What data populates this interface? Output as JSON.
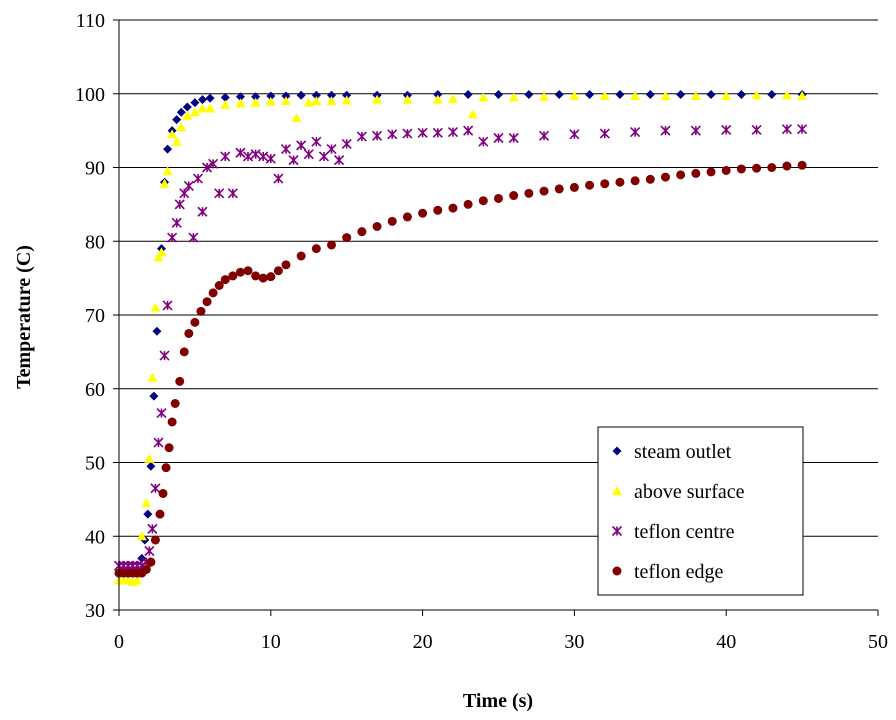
{
  "chart_data": {
    "type": "scatter",
    "title": "",
    "xlabel": "Time (s)",
    "ylabel": "Temperature (C)",
    "xlim": [
      0,
      50
    ],
    "ylim": [
      30,
      110
    ],
    "x_ticks": [
      0,
      10,
      20,
      30,
      40,
      50
    ],
    "y_ticks": [
      30,
      40,
      50,
      60,
      70,
      80,
      90,
      100,
      110
    ],
    "grid": "horizontal major gridlines",
    "legend_position": "bottom-right",
    "series": [
      {
        "name": "steam outlet",
        "marker": "diamond",
        "color": "#000080",
        "points": [
          [
            0,
            35
          ],
          [
            0.3,
            35
          ],
          [
            0.6,
            35
          ],
          [
            0.9,
            35
          ],
          [
            1.2,
            35
          ],
          [
            1.5,
            37
          ],
          [
            1.7,
            39.5
          ],
          [
            1.9,
            43
          ],
          [
            2.1,
            49.5
          ],
          [
            2.3,
            59
          ],
          [
            2.5,
            67.8
          ],
          [
            2.8,
            79
          ],
          [
            3.0,
            88
          ],
          [
            3.2,
            92.5
          ],
          [
            3.5,
            95
          ],
          [
            3.8,
            96.5
          ],
          [
            4.1,
            97.5
          ],
          [
            4.5,
            98.2
          ],
          [
            5.0,
            98.8
          ],
          [
            5.5,
            99.2
          ],
          [
            6,
            99.4
          ],
          [
            7,
            99.5
          ],
          [
            8,
            99.6
          ],
          [
            9,
            99.6
          ],
          [
            10,
            99.7
          ],
          [
            11,
            99.7
          ],
          [
            12,
            99.8
          ],
          [
            13,
            99.8
          ],
          [
            14,
            99.8
          ],
          [
            15,
            99.8
          ],
          [
            17,
            99.8
          ],
          [
            19,
            99.8
          ],
          [
            21,
            99.9
          ],
          [
            23,
            99.9
          ],
          [
            25,
            99.9
          ],
          [
            27,
            99.9
          ],
          [
            29,
            99.9
          ],
          [
            31,
            99.9
          ],
          [
            33,
            99.9
          ],
          [
            35,
            99.9
          ],
          [
            37,
            99.9
          ],
          [
            39,
            99.9
          ],
          [
            41,
            99.9
          ],
          [
            43,
            99.9
          ],
          [
            45,
            99.9
          ]
        ]
      },
      {
        "name": "above surface",
        "marker": "triangle",
        "color": "#ffff00",
        "points": [
          [
            0,
            34
          ],
          [
            0.3,
            34
          ],
          [
            0.6,
            34
          ],
          [
            0.9,
            33.8
          ],
          [
            1.2,
            34
          ],
          [
            1.5,
            40
          ],
          [
            1.8,
            44.5
          ],
          [
            2.0,
            50.5
          ],
          [
            2.2,
            61.5
          ],
          [
            2.4,
            71
          ],
          [
            2.6,
            77.8
          ],
          [
            2.8,
            78.5
          ],
          [
            3.0,
            87.8
          ],
          [
            3.2,
            89.5
          ],
          [
            3.5,
            94.5
          ],
          [
            3.8,
            93.5
          ],
          [
            4.1,
            95.5
          ],
          [
            4.5,
            97
          ],
          [
            5,
            97.5
          ],
          [
            5.5,
            98
          ],
          [
            6,
            98
          ],
          [
            7,
            98.5
          ],
          [
            8,
            98.7
          ],
          [
            9,
            98.8
          ],
          [
            10,
            98.9
          ],
          [
            11,
            99
          ],
          [
            11.7,
            96.7
          ],
          [
            12.5,
            98.8
          ],
          [
            13,
            99
          ],
          [
            14,
            99
          ],
          [
            15,
            99.1
          ],
          [
            17,
            99.2
          ],
          [
            19,
            99.2
          ],
          [
            21,
            99.2
          ],
          [
            22,
            99.3
          ],
          [
            23.3,
            97.2
          ],
          [
            24,
            99.5
          ],
          [
            26,
            99.5
          ],
          [
            28,
            99.6
          ],
          [
            30,
            99.7
          ],
          [
            32,
            99.7
          ],
          [
            34,
            99.7
          ],
          [
            36,
            99.7
          ],
          [
            38,
            99.7
          ],
          [
            40,
            99.7
          ],
          [
            42,
            99.8
          ],
          [
            44,
            99.8
          ],
          [
            45,
            99.7
          ]
        ]
      },
      {
        "name": "teflon centre",
        "marker": "asterisk",
        "color": "#800080",
        "points": [
          [
            0,
            36
          ],
          [
            0.3,
            36
          ],
          [
            0.6,
            36
          ],
          [
            0.9,
            36
          ],
          [
            1.2,
            36
          ],
          [
            1.5,
            36
          ],
          [
            1.8,
            36.5
          ],
          [
            2.0,
            38
          ],
          [
            2.2,
            41
          ],
          [
            2.4,
            46.5
          ],
          [
            2.6,
            52.7
          ],
          [
            2.8,
            56.7
          ],
          [
            3.0,
            64.5
          ],
          [
            3.2,
            71.3
          ],
          [
            3.5,
            80.5
          ],
          [
            3.8,
            82.5
          ],
          [
            4.0,
            85
          ],
          [
            4.3,
            86.5
          ],
          [
            4.6,
            87.5
          ],
          [
            4.9,
            80.5
          ],
          [
            5.2,
            88.5
          ],
          [
            5.5,
            84
          ],
          [
            5.8,
            90
          ],
          [
            6.2,
            90.5
          ],
          [
            6.6,
            86.5
          ],
          [
            7,
            91.5
          ],
          [
            7.5,
            86.5
          ],
          [
            8,
            92
          ],
          [
            8.5,
            91.5
          ],
          [
            9,
            91.8
          ],
          [
            9.5,
            91.5
          ],
          [
            10,
            91.2
          ],
          [
            10.5,
            88.5
          ],
          [
            11,
            92.5
          ],
          [
            11.5,
            91
          ],
          [
            12,
            93
          ],
          [
            12.5,
            91.8
          ],
          [
            13,
            93.5
          ],
          [
            13.5,
            91.5
          ],
          [
            14,
            92.5
          ],
          [
            14.5,
            91
          ],
          [
            15,
            93.2
          ],
          [
            16,
            94.2
          ],
          [
            17,
            94.3
          ],
          [
            18,
            94.5
          ],
          [
            19,
            94.6
          ],
          [
            20,
            94.7
          ],
          [
            21,
            94.7
          ],
          [
            22,
            94.8
          ],
          [
            23,
            95
          ],
          [
            24,
            93.5
          ],
          [
            25,
            94
          ],
          [
            26,
            94
          ],
          [
            28,
            94.3
          ],
          [
            30,
            94.5
          ],
          [
            32,
            94.6
          ],
          [
            34,
            94.8
          ],
          [
            36,
            95
          ],
          [
            38,
            95
          ],
          [
            40,
            95.1
          ],
          [
            42,
            95.1
          ],
          [
            44,
            95.2
          ],
          [
            45,
            95.2
          ]
        ]
      },
      {
        "name": "teflon edge",
        "marker": "circle",
        "color": "#800000",
        "points": [
          [
            0,
            35
          ],
          [
            0.3,
            35
          ],
          [
            0.6,
            35
          ],
          [
            0.9,
            35
          ],
          [
            1.2,
            35
          ],
          [
            1.5,
            35
          ],
          [
            1.8,
            35.5
          ],
          [
            2.1,
            36.5
          ],
          [
            2.4,
            39.5
          ],
          [
            2.7,
            43
          ],
          [
            2.9,
            45.8
          ],
          [
            3.1,
            49.3
          ],
          [
            3.3,
            52
          ],
          [
            3.5,
            55.5
          ],
          [
            3.7,
            58
          ],
          [
            4.0,
            61
          ],
          [
            4.3,
            65
          ],
          [
            4.6,
            67.5
          ],
          [
            5.0,
            69
          ],
          [
            5.4,
            70.5
          ],
          [
            5.8,
            71.8
          ],
          [
            6.2,
            73
          ],
          [
            6.6,
            74
          ],
          [
            7.0,
            74.8
          ],
          [
            7.5,
            75.3
          ],
          [
            8,
            75.8
          ],
          [
            8.5,
            76
          ],
          [
            9,
            75.3
          ],
          [
            9.5,
            75
          ],
          [
            10,
            75.2
          ],
          [
            10.5,
            76
          ],
          [
            11,
            76.8
          ],
          [
            12,
            78
          ],
          [
            13,
            79
          ],
          [
            14,
            79.5
          ],
          [
            15,
            80.5
          ],
          [
            16,
            81.3
          ],
          [
            17,
            82
          ],
          [
            18,
            82.7
          ],
          [
            19,
            83.3
          ],
          [
            20,
            83.8
          ],
          [
            21,
            84.2
          ],
          [
            22,
            84.5
          ],
          [
            23,
            85
          ],
          [
            24,
            85.5
          ],
          [
            25,
            85.8
          ],
          [
            26,
            86.2
          ],
          [
            27,
            86.5
          ],
          [
            28,
            86.8
          ],
          [
            29,
            87.1
          ],
          [
            30,
            87.3
          ],
          [
            31,
            87.6
          ],
          [
            32,
            87.8
          ],
          [
            33,
            88
          ],
          [
            34,
            88.2
          ],
          [
            35,
            88.4
          ],
          [
            36,
            88.7
          ],
          [
            37,
            89
          ],
          [
            38,
            89.2
          ],
          [
            39,
            89.4
          ],
          [
            40,
            89.6
          ],
          [
            41,
            89.8
          ],
          [
            42,
            89.9
          ],
          [
            43,
            90
          ],
          [
            44,
            90.2
          ],
          [
            45,
            90.3
          ]
        ]
      }
    ]
  }
}
